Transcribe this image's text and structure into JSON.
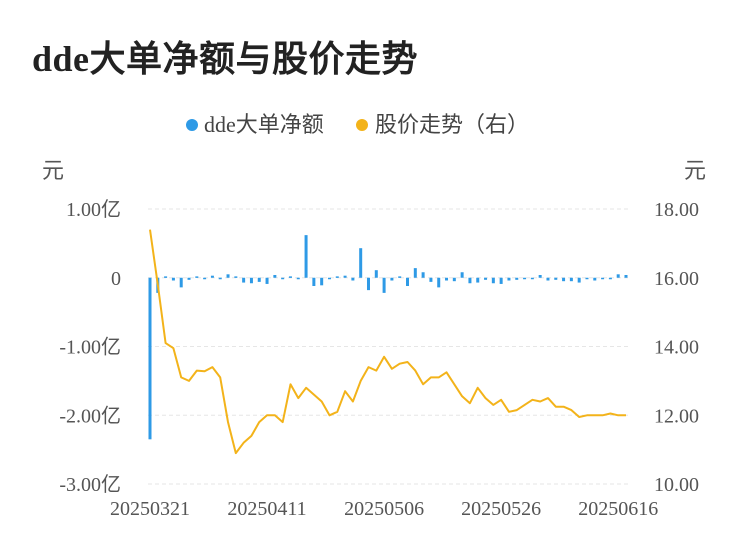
{
  "title": "dde大单净额与股价走势",
  "chart_data": {
    "type": "bar+line",
    "title": "dde大单净额与股价走势",
    "legend": [
      {
        "name": "dde大单净额",
        "color": "#2e9ae6"
      },
      {
        "name": "股价走势（右）",
        "color": "#f3b31a"
      }
    ],
    "left_unit": "元",
    "right_unit": "元",
    "left_axis": {
      "ticks": [
        1.0,
        0,
        -1.0,
        -2.0,
        -3.0
      ],
      "tick_labels": [
        "1.00亿",
        "0",
        "-1.00亿",
        "-2.00亿",
        "-3.00亿"
      ],
      "ylim": [
        -3.0,
        1.0
      ],
      "scale_unit": "亿"
    },
    "right_axis": {
      "ticks": [
        18,
        16,
        14,
        12,
        10
      ],
      "tick_labels": [
        "18.00",
        "16.00",
        "14.00",
        "12.00",
        "10.00"
      ],
      "ylim": [
        10,
        18
      ]
    },
    "x_tick_labels": [
      "20250321",
      "20250411",
      "20250506",
      "20250526",
      "20250616"
    ],
    "x_tick_indices": [
      0,
      15,
      30,
      45,
      60
    ],
    "grid": true,
    "legend_position": "top-center",
    "series": [
      {
        "name": "dde大单净额",
        "axis": "left",
        "values": [
          -2.35,
          -0.22,
          0.02,
          -0.04,
          -0.14,
          -0.03,
          0.02,
          -0.02,
          0.03,
          0.0,
          0.05,
          0.02,
          -0.07,
          -0.08,
          -0.06,
          -0.09,
          0.04,
          0.0,
          0.02,
          0.0,
          0.62,
          -0.12,
          -0.11,
          0.0,
          0.02,
          0.03,
          -0.04,
          0.43,
          -0.18,
          0.11,
          -0.22,
          -0.04,
          0.02,
          -0.12,
          0.14,
          0.08,
          -0.06,
          -0.14,
          -0.04,
          -0.05,
          0.08,
          -0.08,
          -0.07,
          -0.03,
          -0.08,
          -0.09,
          -0.04,
          -0.03,
          0.0,
          0.0,
          0.04,
          -0.04,
          -0.03,
          -0.05,
          -0.05,
          -0.07,
          -0.02,
          -0.04,
          -0.02,
          0.0,
          0.05,
          0.04
        ]
      },
      {
        "name": "股价走势（右）",
        "axis": "right",
        "values": [
          17.4,
          15.8,
          14.1,
          13.95,
          13.1,
          13.0,
          13.3,
          13.28,
          13.4,
          13.1,
          11.8,
          10.9,
          11.2,
          11.4,
          11.8,
          12.0,
          12.0,
          11.8,
          12.9,
          12.5,
          12.8,
          12.6,
          12.4,
          12.0,
          12.1,
          12.7,
          12.4,
          13.0,
          13.4,
          13.3,
          13.7,
          13.35,
          13.5,
          13.55,
          13.3,
          12.9,
          13.1,
          13.1,
          13.25,
          12.9,
          12.55,
          12.35,
          12.8,
          12.5,
          12.3,
          12.45,
          12.1,
          12.15,
          12.3,
          12.45,
          12.4,
          12.5,
          12.25,
          12.25,
          12.15,
          11.95,
          12.0,
          12.0,
          12.0,
          12.05,
          12.0,
          12.0
        ]
      }
    ]
  }
}
